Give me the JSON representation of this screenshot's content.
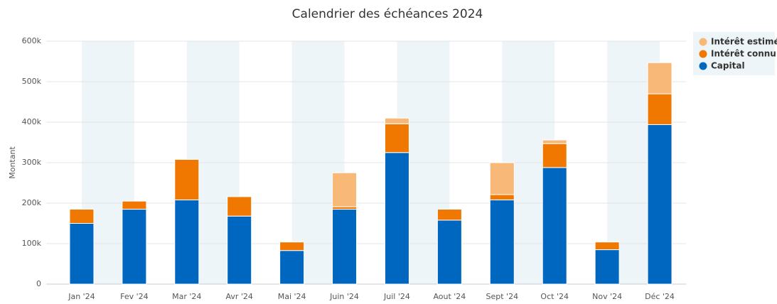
{
  "chart_data": {
    "type": "stacked_bar",
    "title": "Calendrier des échéances 2024",
    "y_label": "Montant",
    "categories": [
      "Jan '24",
      "Fev '24",
      "Mar '24",
      "Avr '24",
      "Mai '24",
      "Juin '24",
      "Juil '24",
      "Aout '24",
      "Sept '24",
      "Oct '24",
      "Nov '24",
      "Déc '24"
    ],
    "series": [
      {
        "name": "Capital",
        "color": "#0067c0",
        "values": [
          150000,
          185000,
          208000,
          168000,
          83000,
          185000,
          325000,
          158000,
          208000,
          288000,
          85000,
          394000
        ]
      },
      {
        "name": "Intérêt connu",
        "color": "#f07800",
        "values": [
          35000,
          20000,
          100000,
          48000,
          21000,
          6000,
          71000,
          27000,
          13000,
          59000,
          19000,
          76000
        ]
      },
      {
        "name": "Intérêt estimé",
        "color": "#f8b878",
        "values": [
          0,
          0,
          0,
          0,
          0,
          84000,
          14000,
          0,
          79000,
          9000,
          0,
          77000
        ]
      }
    ],
    "ylim": [
      0,
      600000
    ],
    "yticks": [
      0,
      {
        "value": 100000,
        "label": "100k"
      },
      {
        "value": 200000,
        "label": "200k"
      },
      {
        "value": 300000,
        "label": "300k"
      },
      {
        "value": 400000,
        "label": "400k"
      },
      {
        "value": 500000,
        "label": "500k"
      },
      {
        "value": 600000,
        "label": "600k"
      }
    ],
    "grid": true
  }
}
